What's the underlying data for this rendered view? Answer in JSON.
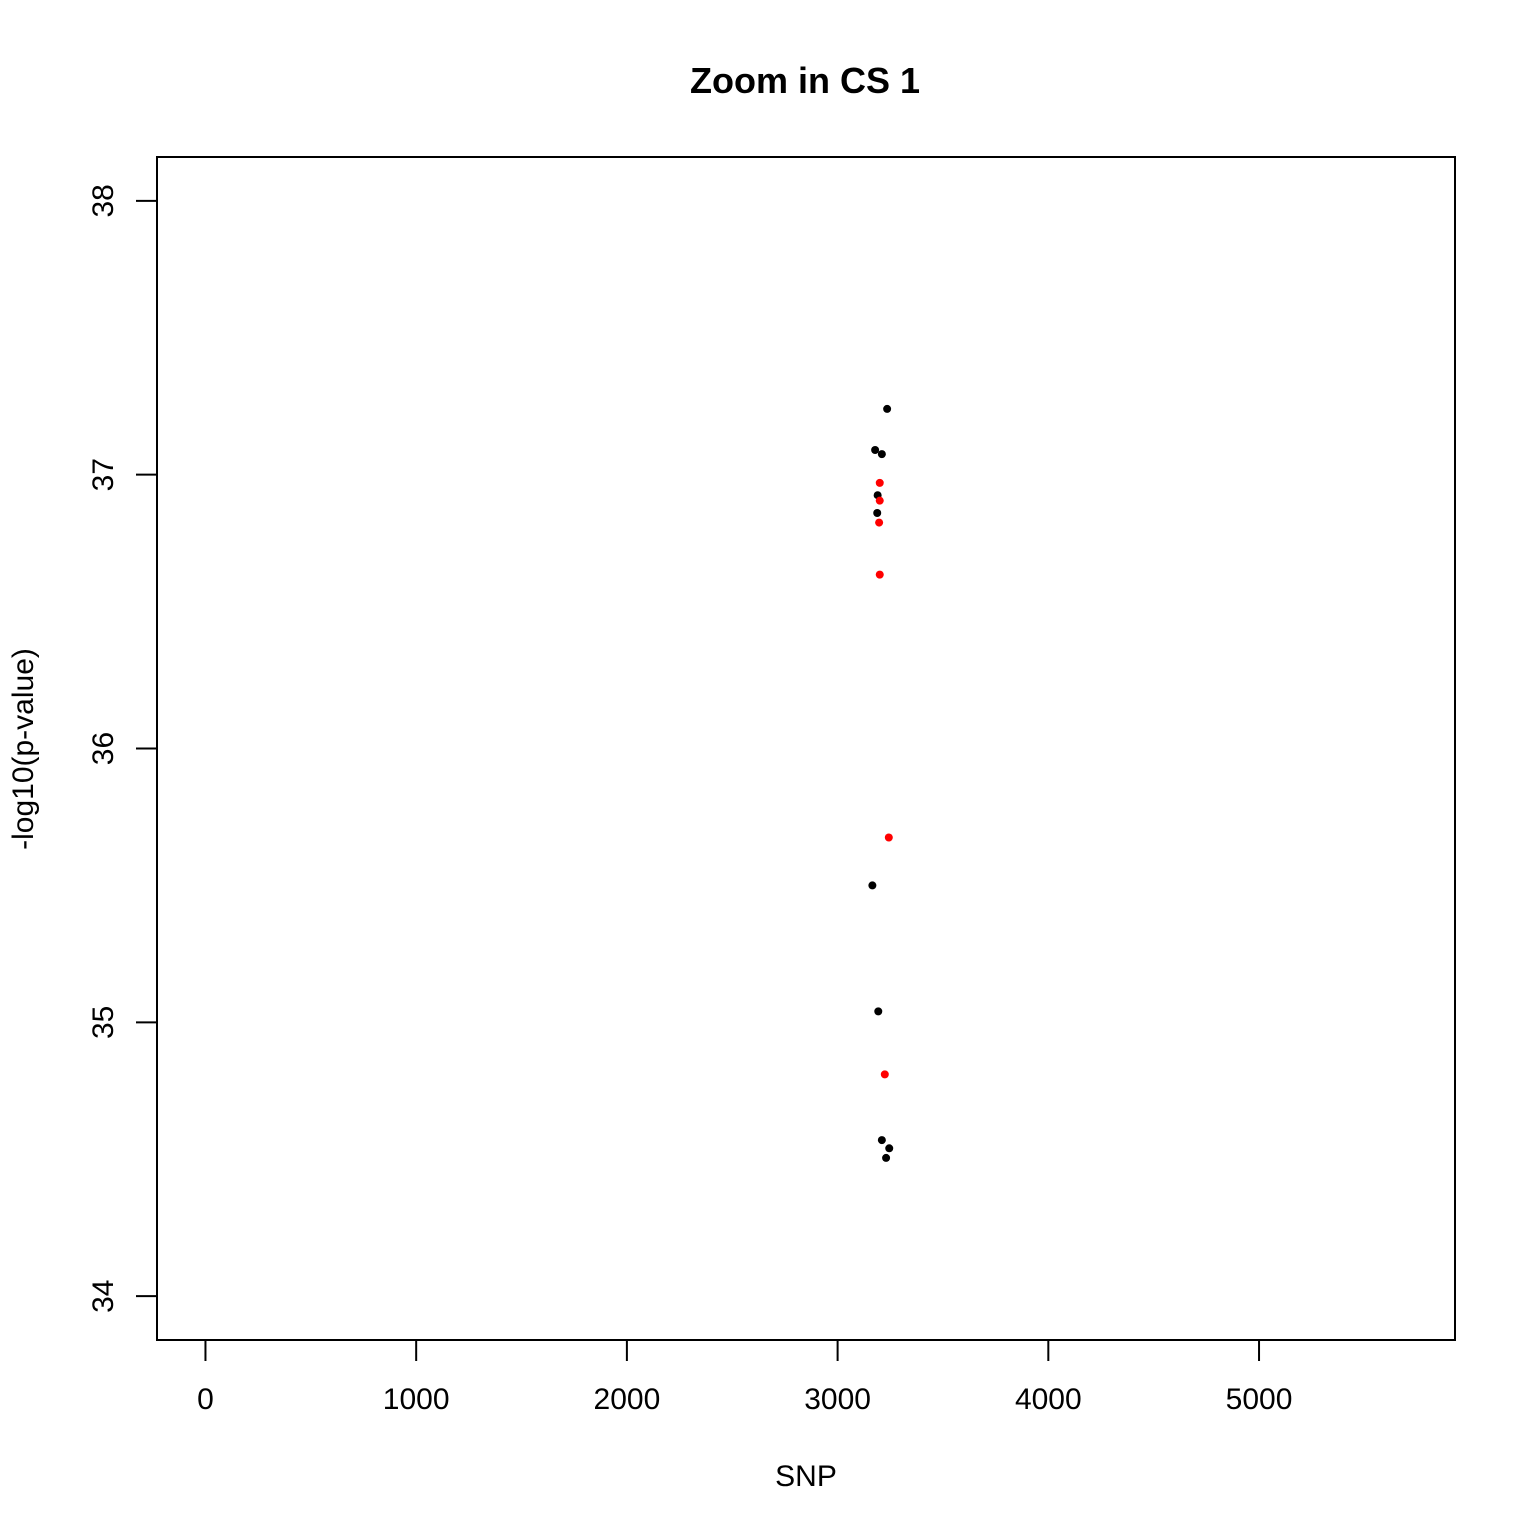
{
  "chart_data": {
    "type": "scatter",
    "title": "Zoom in CS 1",
    "xlabel": "SNP",
    "ylabel": "-log10(p-value)",
    "xlim": [
      -230,
      5930
    ],
    "ylim": [
      33.84,
      38.16
    ],
    "xticks": [
      0,
      1000,
      2000,
      3000,
      4000,
      5000
    ],
    "yticks": [
      34,
      35,
      36,
      37,
      38
    ],
    "grid": false,
    "colors": {
      "default": "#000000",
      "highlight": "#ff0000"
    },
    "points": [
      {
        "x": 3235,
        "y": 37.24,
        "color": "#000000"
      },
      {
        "x": 3178,
        "y": 37.09,
        "color": "#000000"
      },
      {
        "x": 3210,
        "y": 37.075,
        "color": "#000000"
      },
      {
        "x": 3200,
        "y": 36.97,
        "color": "#ff0000"
      },
      {
        "x": 3190,
        "y": 36.925,
        "color": "#000000"
      },
      {
        "x": 3200,
        "y": 36.905,
        "color": "#ff0000"
      },
      {
        "x": 3188,
        "y": 36.86,
        "color": "#000000"
      },
      {
        "x": 3197,
        "y": 36.825,
        "color": "#ff0000"
      },
      {
        "x": 3200,
        "y": 36.635,
        "color": "#ff0000"
      },
      {
        "x": 3243,
        "y": 35.675,
        "color": "#ff0000"
      },
      {
        "x": 3165,
        "y": 35.5,
        "color": "#000000"
      },
      {
        "x": 3193,
        "y": 35.04,
        "color": "#000000"
      },
      {
        "x": 3224,
        "y": 34.81,
        "color": "#ff0000"
      },
      {
        "x": 3210,
        "y": 34.57,
        "color": "#000000"
      },
      {
        "x": 3245,
        "y": 34.54,
        "color": "#000000"
      },
      {
        "x": 3230,
        "y": 34.505,
        "color": "#000000"
      }
    ]
  }
}
